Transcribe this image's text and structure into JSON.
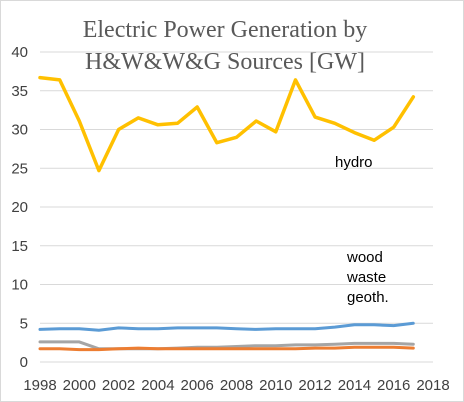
{
  "chart_data": {
    "type": "line",
    "title_lines": [
      "Electric Power Generation by",
      "H&W&W&G Sources [GW]"
    ],
    "xlabel": "",
    "ylabel": "",
    "x": [
      1998,
      1999,
      2000,
      2001,
      2002,
      2003,
      2004,
      2005,
      2006,
      2007,
      2008,
      2009,
      2010,
      2011,
      2012,
      2013,
      2014,
      2015,
      2016,
      2017
    ],
    "xlim": [
      1998,
      2018
    ],
    "xticks": [
      1998,
      2000,
      2002,
      2004,
      2006,
      2008,
      2010,
      2012,
      2014,
      2016,
      2018
    ],
    "ylim": [
      0,
      40
    ],
    "yticks": [
      0,
      5,
      10,
      15,
      20,
      25,
      30,
      35,
      40
    ],
    "grid": "horizontal",
    "legend": "none",
    "annotations": [
      "hydro",
      "wood",
      "waste",
      "geoth."
    ],
    "series": [
      {
        "color": "#ffc000",
        "values": [
          36.7,
          36.4,
          31.1,
          24.7,
          30.0,
          31.5,
          30.6,
          30.8,
          32.9,
          28.3,
          29.0,
          31.1,
          29.7,
          36.4,
          31.6,
          30.8,
          29.6,
          28.6,
          30.3,
          34.2
        ]
      },
      {
        "color": "#5b9bd5",
        "values": [
          4.2,
          4.3,
          4.3,
          4.1,
          4.4,
          4.3,
          4.3,
          4.4,
          4.4,
          4.4,
          4.3,
          4.2,
          4.3,
          4.3,
          4.3,
          4.5,
          4.8,
          4.8,
          4.7,
          5.0
        ]
      },
      {
        "color": "#a5a5a5",
        "values": [
          2.6,
          2.6,
          2.6,
          1.7,
          1.7,
          1.7,
          1.7,
          1.8,
          1.9,
          1.9,
          2.0,
          2.1,
          2.1,
          2.2,
          2.2,
          2.3,
          2.4,
          2.4,
          2.4,
          2.3
        ]
      },
      {
        "color": "#ed7d31",
        "values": [
          1.7,
          1.7,
          1.6,
          1.6,
          1.7,
          1.8,
          1.7,
          1.7,
          1.7,
          1.7,
          1.7,
          1.7,
          1.7,
          1.7,
          1.8,
          1.8,
          1.9,
          1.9,
          1.9,
          1.8
        ]
      }
    ]
  }
}
